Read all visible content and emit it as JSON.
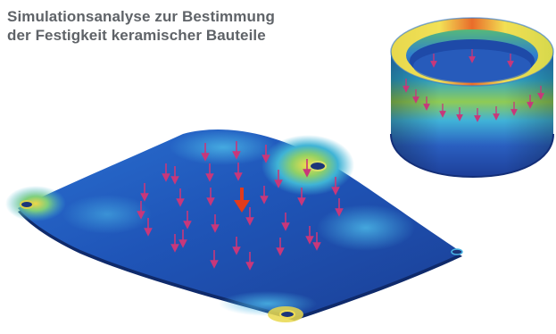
{
  "caption": {
    "line1": "Simulationsanalyse zur Bestimmung",
    "line2": "der Festigkeit keramischer Bauteile"
  },
  "objects": [
    {
      "name": "plate",
      "description_icon": "fea-stress-plate"
    },
    {
      "name": "ring",
      "description_icon": "fea-stress-ring"
    }
  ],
  "colors": {
    "caption": "#5f6368",
    "low_stress": "#1d3f9c",
    "mid_stress": "#3aa7d9",
    "high_stress": "#f0e046",
    "peak_stress": "#e23b1b",
    "load_arrow": "#c8377a"
  }
}
